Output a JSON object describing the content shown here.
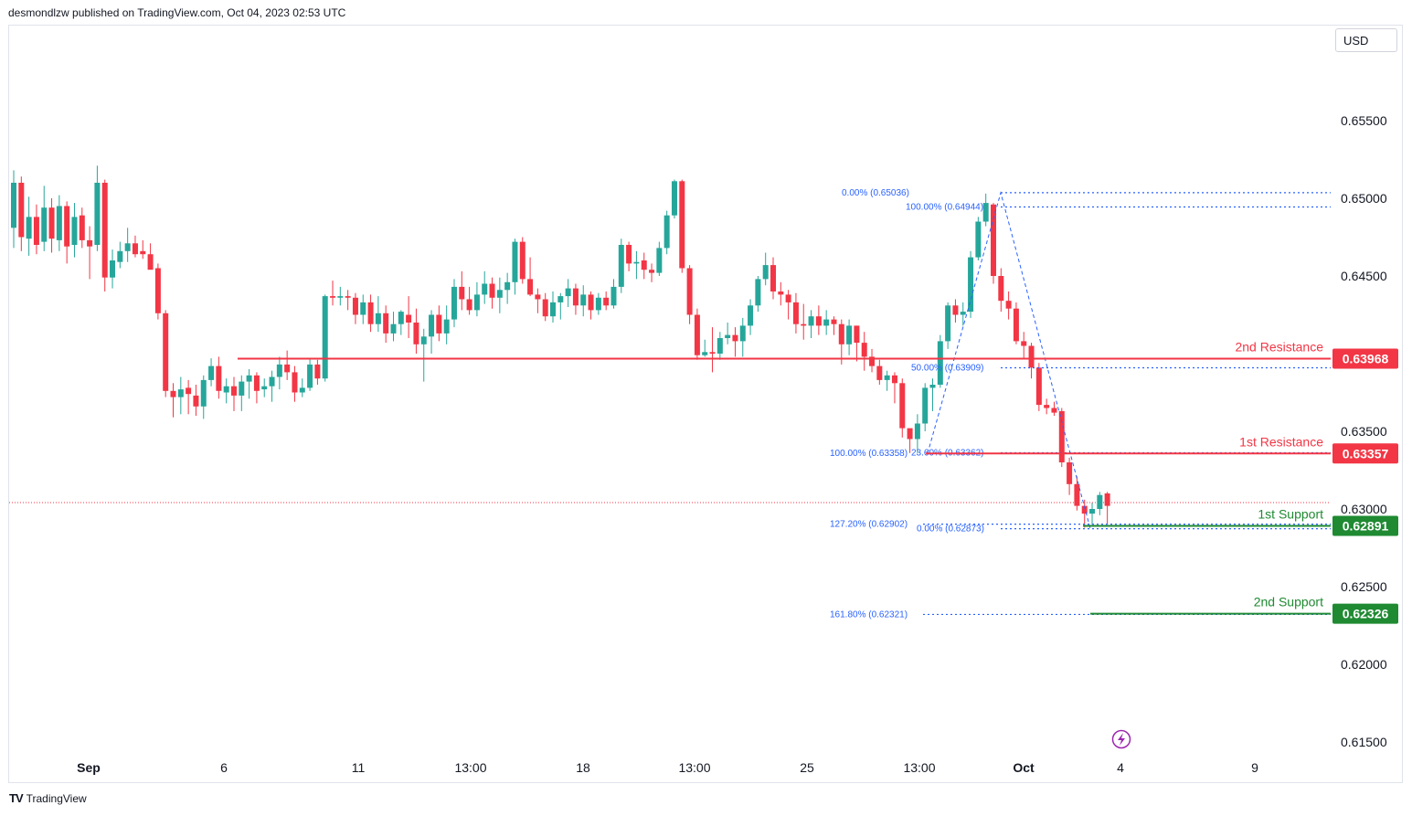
{
  "header": {
    "attribution": "desmondlzw published on TradingView.com, Oct 04, 2023 02:53 UTC"
  },
  "currency_button": "USD",
  "footer": {
    "logo": "TV",
    "brand": "TradingView"
  },
  "icons": {
    "flash": "lightning-icon"
  },
  "colors": {
    "bull": "#26a69a",
    "bear": "#f23645",
    "fib": "#2962ff",
    "support": "#1f8a32",
    "resistance": "#f23645"
  },
  "chart_data": {
    "type": "candlestick",
    "symbol_quote": "USD",
    "ylim": [
      0.6125,
      0.6575
    ],
    "y_ticks": [
      "0.65500",
      "0.65000",
      "0.64500",
      "0.63500",
      "0.63000",
      "0.62500",
      "0.62000",
      "0.61500"
    ],
    "x_ticks": [
      "Sep",
      "6",
      "11",
      "13:00",
      "18",
      "13:00",
      "25",
      "13:00",
      "Oct",
      "4",
      "9"
    ],
    "levels": [
      {
        "name": "2nd Resistance",
        "value": "0.63968",
        "kind": "resistance"
      },
      {
        "name": "1st Resistance",
        "value": "0.63357",
        "kind": "resistance"
      },
      {
        "name": "1st Support",
        "value": "0.62891",
        "kind": "support"
      },
      {
        "name": "2nd Support",
        "value": "0.62326",
        "kind": "support"
      }
    ],
    "fib_labels": [
      {
        "text": "0.00% (0.65036)",
        "value": 0.65036
      },
      {
        "text": "100.00% (0.64944)",
        "value": 0.64944
      },
      {
        "text": "50.00% (0.63909)",
        "value": 0.63909
      },
      {
        "text": "23.60% (0.63362)",
        "value": 0.63362
      },
      {
        "text": "100.00% (0.63358)",
        "value": 0.63358
      },
      {
        "text": "127.20% (0.62902)",
        "value": 0.62902
      },
      {
        "text": "0.00% (0.62873)",
        "value": 0.62873
      },
      {
        "text": "161.80% (0.62321)",
        "value": 0.62321
      }
    ],
    "candles": [
      [
        0.6481,
        0.6518,
        0.6468,
        0.651
      ],
      [
        0.651,
        0.6514,
        0.6466,
        0.6475
      ],
      [
        0.6474,
        0.6501,
        0.6463,
        0.6488
      ],
      [
        0.6488,
        0.6496,
        0.6464,
        0.647
      ],
      [
        0.6472,
        0.6508,
        0.6466,
        0.6494
      ],
      [
        0.6494,
        0.65,
        0.6465,
        0.6474
      ],
      [
        0.6473,
        0.6502,
        0.6466,
        0.6495
      ],
      [
        0.6495,
        0.6498,
        0.6458,
        0.6469
      ],
      [
        0.647,
        0.6497,
        0.6462,
        0.6488
      ],
      [
        0.6489,
        0.6494,
        0.6468,
        0.6473
      ],
      [
        0.6473,
        0.6482,
        0.6448,
        0.6469
      ],
      [
        0.647,
        0.6521,
        0.6466,
        0.651
      ],
      [
        0.651,
        0.6512,
        0.644,
        0.6449
      ],
      [
        0.6449,
        0.6467,
        0.6442,
        0.646
      ],
      [
        0.6459,
        0.6472,
        0.6455,
        0.6466
      ],
      [
        0.6466,
        0.6481,
        0.6459,
        0.6471
      ],
      [
        0.6471,
        0.6476,
        0.6462,
        0.6464
      ],
      [
        0.6466,
        0.6473,
        0.6461,
        0.6464
      ],
      [
        0.6464,
        0.6471,
        0.6456,
        0.6454
      ],
      [
        0.6455,
        0.6458,
        0.6422,
        0.6426
      ],
      [
        0.6426,
        0.6428,
        0.6372,
        0.6376
      ],
      [
        0.6376,
        0.6381,
        0.6359,
        0.6372
      ],
      [
        0.6372,
        0.6385,
        0.6361,
        0.6377
      ],
      [
        0.6378,
        0.6383,
        0.6361,
        0.6374
      ],
      [
        0.6373,
        0.638,
        0.636,
        0.6366
      ],
      [
        0.6366,
        0.6386,
        0.6358,
        0.6383
      ],
      [
        0.6383,
        0.6397,
        0.6379,
        0.6392
      ],
      [
        0.6392,
        0.6398,
        0.6371,
        0.6376
      ],
      [
        0.6375,
        0.6384,
        0.6368,
        0.6379
      ],
      [
        0.6379,
        0.6385,
        0.6363,
        0.6373
      ],
      [
        0.6373,
        0.6386,
        0.6363,
        0.6382
      ],
      [
        0.6382,
        0.639,
        0.6371,
        0.6386
      ],
      [
        0.6386,
        0.6388,
        0.6368,
        0.6376
      ],
      [
        0.6377,
        0.6384,
        0.6372,
        0.6379
      ],
      [
        0.6379,
        0.6389,
        0.6369,
        0.6385
      ],
      [
        0.6385,
        0.6398,
        0.6377,
        0.6393
      ],
      [
        0.6393,
        0.6402,
        0.6383,
        0.6388
      ],
      [
        0.6388,
        0.6392,
        0.6369,
        0.6375
      ],
      [
        0.6375,
        0.6384,
        0.6372,
        0.6378
      ],
      [
        0.6378,
        0.6397,
        0.6376,
        0.6393
      ],
      [
        0.6393,
        0.6396,
        0.638,
        0.6384
      ],
      [
        0.6384,
        0.6438,
        0.6382,
        0.6437
      ],
      [
        0.6437,
        0.6447,
        0.6431,
        0.6436
      ],
      [
        0.6436,
        0.6443,
        0.6431,
        0.6437
      ],
      [
        0.6437,
        0.6441,
        0.6428,
        0.6436
      ],
      [
        0.6436,
        0.6439,
        0.6419,
        0.6425
      ],
      [
        0.6425,
        0.6438,
        0.6419,
        0.6433
      ],
      [
        0.6433,
        0.6438,
        0.6414,
        0.6419
      ],
      [
        0.6419,
        0.6437,
        0.6414,
        0.6426
      ],
      [
        0.6426,
        0.6431,
        0.6407,
        0.6413
      ],
      [
        0.6413,
        0.6427,
        0.6408,
        0.6419
      ],
      [
        0.6419,
        0.6428,
        0.6412,
        0.6427
      ],
      [
        0.6425,
        0.6437,
        0.641,
        0.642
      ],
      [
        0.642,
        0.6429,
        0.64,
        0.6406
      ],
      [
        0.6406,
        0.6416,
        0.6382,
        0.6411
      ],
      [
        0.6411,
        0.6428,
        0.64,
        0.6425
      ],
      [
        0.6425,
        0.6431,
        0.6408,
        0.6413
      ],
      [
        0.6413,
        0.6431,
        0.6406,
        0.6422
      ],
      [
        0.6422,
        0.6448,
        0.6417,
        0.6443
      ],
      [
        0.6443,
        0.6453,
        0.6428,
        0.6435
      ],
      [
        0.6435,
        0.6443,
        0.6425,
        0.6428
      ],
      [
        0.6428,
        0.6446,
        0.6424,
        0.6438
      ],
      [
        0.6438,
        0.6453,
        0.6432,
        0.6445
      ],
      [
        0.6445,
        0.6449,
        0.6429,
        0.6436
      ],
      [
        0.6436,
        0.6449,
        0.6426,
        0.6441
      ],
      [
        0.6441,
        0.6452,
        0.6432,
        0.6446
      ],
      [
        0.6446,
        0.6474,
        0.6438,
        0.6472
      ],
      [
        0.6472,
        0.6475,
        0.6445,
        0.6448
      ],
      [
        0.6448,
        0.6462,
        0.6437,
        0.6438
      ],
      [
        0.6438,
        0.6442,
        0.6426,
        0.6435
      ],
      [
        0.6435,
        0.6439,
        0.6421,
        0.6424
      ],
      [
        0.6424,
        0.644,
        0.642,
        0.6433
      ],
      [
        0.6433,
        0.6439,
        0.6422,
        0.6437
      ],
      [
        0.6437,
        0.6448,
        0.643,
        0.6442
      ],
      [
        0.6442,
        0.6445,
        0.6425,
        0.6431
      ],
      [
        0.6431,
        0.6444,
        0.6424,
        0.6438
      ],
      [
        0.6438,
        0.644,
        0.6422,
        0.6428
      ],
      [
        0.6428,
        0.6439,
        0.6425,
        0.6436
      ],
      [
        0.6436,
        0.644,
        0.6428,
        0.6431
      ],
      [
        0.6431,
        0.6448,
        0.6429,
        0.6443
      ],
      [
        0.6443,
        0.6474,
        0.6439,
        0.647
      ],
      [
        0.647,
        0.6472,
        0.6453,
        0.6458
      ],
      [
        0.6458,
        0.6466,
        0.6448,
        0.6459
      ],
      [
        0.646,
        0.6465,
        0.6448,
        0.6454
      ],
      [
        0.6454,
        0.6458,
        0.6446,
        0.6452
      ],
      [
        0.6452,
        0.6472,
        0.645,
        0.6468
      ],
      [
        0.6468,
        0.6492,
        0.6464,
        0.6489
      ],
      [
        0.6489,
        0.6512,
        0.6487,
        0.6511
      ],
      [
        0.6511,
        0.6512,
        0.6452,
        0.6455
      ],
      [
        0.6455,
        0.6457,
        0.6419,
        0.6425
      ],
      [
        0.6425,
        0.6429,
        0.6396,
        0.6399
      ],
      [
        0.6399,
        0.6409,
        0.6398,
        0.6401
      ],
      [
        0.6401,
        0.6417,
        0.6388,
        0.64
      ],
      [
        0.64,
        0.6414,
        0.6396,
        0.641
      ],
      [
        0.641,
        0.642,
        0.6406,
        0.6412
      ],
      [
        0.6412,
        0.6417,
        0.6398,
        0.6408
      ],
      [
        0.6408,
        0.6423,
        0.6398,
        0.6418
      ],
      [
        0.6418,
        0.6435,
        0.6412,
        0.6431
      ],
      [
        0.6431,
        0.645,
        0.6427,
        0.6448
      ],
      [
        0.6448,
        0.6465,
        0.6444,
        0.6457
      ],
      [
        0.6457,
        0.6462,
        0.6435,
        0.644
      ],
      [
        0.644,
        0.6446,
        0.6431,
        0.6438
      ],
      [
        0.6438,
        0.6441,
        0.6422,
        0.6433
      ],
      [
        0.6433,
        0.6439,
        0.6413,
        0.6419
      ],
      [
        0.6419,
        0.6432,
        0.6409,
        0.6418
      ],
      [
        0.6418,
        0.6428,
        0.641,
        0.6424
      ],
      [
        0.6424,
        0.6431,
        0.6412,
        0.6418
      ],
      [
        0.6418,
        0.6428,
        0.6412,
        0.6422
      ],
      [
        0.6422,
        0.6424,
        0.6412,
        0.6419
      ],
      [
        0.6419,
        0.6422,
        0.6393,
        0.6406
      ],
      [
        0.6406,
        0.6422,
        0.6399,
        0.6418
      ],
      [
        0.6418,
        0.6418,
        0.6395,
        0.6407
      ],
      [
        0.6407,
        0.6414,
        0.6389,
        0.6398
      ],
      [
        0.6398,
        0.6403,
        0.6388,
        0.6392
      ],
      [
        0.6392,
        0.6396,
        0.638,
        0.6383
      ],
      [
        0.6383,
        0.6389,
        0.6376,
        0.6386
      ],
      [
        0.6386,
        0.6388,
        0.6368,
        0.6381
      ],
      [
        0.6381,
        0.6384,
        0.6346,
        0.6352
      ],
      [
        0.6352,
        0.6348,
        0.6336,
        0.6345
      ],
      [
        0.6345,
        0.6361,
        0.6336,
        0.6355
      ],
      [
        0.6355,
        0.6381,
        0.635,
        0.6378
      ],
      [
        0.6378,
        0.6384,
        0.6363,
        0.638
      ],
      [
        0.638,
        0.6412,
        0.6378,
        0.6408
      ],
      [
        0.6408,
        0.6433,
        0.6403,
        0.6431
      ],
      [
        0.6431,
        0.6435,
        0.642,
        0.6425
      ],
      [
        0.6425,
        0.6433,
        0.6418,
        0.6427
      ],
      [
        0.6427,
        0.6466,
        0.6423,
        0.6462
      ],
      [
        0.6462,
        0.6488,
        0.646,
        0.6485
      ],
      [
        0.6485,
        0.6503,
        0.6482,
        0.6497
      ],
      [
        0.6496,
        0.6497,
        0.6445,
        0.645
      ],
      [
        0.645,
        0.6455,
        0.6427,
        0.6434
      ],
      [
        0.6434,
        0.644,
        0.6422,
        0.6429
      ],
      [
        0.6429,
        0.6433,
        0.6406,
        0.6408
      ],
      [
        0.6408,
        0.6414,
        0.6397,
        0.6405
      ],
      [
        0.6405,
        0.6407,
        0.6384,
        0.6391
      ],
      [
        0.6391,
        0.6394,
        0.6363,
        0.6367
      ],
      [
        0.6367,
        0.6371,
        0.6361,
        0.6365
      ],
      [
        0.6365,
        0.6369,
        0.636,
        0.6362
      ],
      [
        0.6363,
        0.6365,
        0.6327,
        0.633
      ],
      [
        0.633,
        0.6333,
        0.6309,
        0.6316
      ],
      [
        0.6316,
        0.6321,
        0.6299,
        0.6302
      ],
      [
        0.6302,
        0.6306,
        0.6288,
        0.6297
      ],
      [
        0.6297,
        0.6304,
        0.629,
        0.63
      ],
      [
        0.63,
        0.6311,
        0.6296,
        0.6309
      ],
      [
        0.631,
        0.6311,
        0.629,
        0.6302
      ]
    ]
  }
}
